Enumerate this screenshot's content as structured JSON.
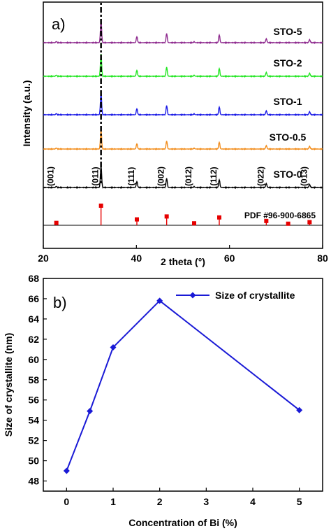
{
  "chart_data": [
    {
      "type": "line",
      "panel": "a)",
      "xlabel": "2 theta (°)",
      "ylabel": "Intensity (a.u.)",
      "xlim": [
        20,
        80
      ],
      "xticks": [
        "20",
        "40",
        "60",
        "80"
      ],
      "peak_positions": [
        22.8,
        32.4,
        40.1,
        46.5,
        52.4,
        57.8,
        67.9,
        77.2
      ],
      "hkl_labels": [
        "(001)",
        "(011)",
        "(111)",
        "(002)",
        "(012)",
        "(112)",
        "(022)",
        "(013)"
      ],
      "series": [
        {
          "name": "STO-5",
          "color": "#8e2a8e",
          "intensities": [
            0.05,
            1.0,
            0.28,
            0.42,
            0.04,
            0.36,
            0.18,
            0.14
          ]
        },
        {
          "name": "STO-2",
          "color": "#22e622",
          "intensities": [
            0.05,
            1.0,
            0.28,
            0.42,
            0.04,
            0.36,
            0.18,
            0.14
          ]
        },
        {
          "name": "STO-1",
          "color": "#1a1ae6",
          "intensities": [
            0.05,
            1.0,
            0.28,
            0.42,
            0.04,
            0.36,
            0.18,
            0.14
          ]
        },
        {
          "name": "STO-0.5",
          "color": "#f28c1a",
          "intensities": [
            0.05,
            1.0,
            0.28,
            0.42,
            0.04,
            0.36,
            0.18,
            0.14
          ]
        },
        {
          "name": "STO-0",
          "color": "#000000",
          "intensities": [
            0.05,
            1.0,
            0.28,
            0.42,
            0.04,
            0.36,
            0.18,
            0.14
          ]
        }
      ],
      "reference": {
        "name": "PDF #96-900-6865",
        "color": "#e60000",
        "positions": [
          22.8,
          32.4,
          40.1,
          46.5,
          52.4,
          57.8,
          67.9,
          72.6,
          77.2
        ],
        "intensities": [
          0.12,
          1.0,
          0.3,
          0.45,
          0.1,
          0.4,
          0.22,
          0.08,
          0.16
        ]
      }
    },
    {
      "type": "line",
      "panel": "b)",
      "xlabel": "Concentration of Bi (%)",
      "ylabel": "Size of crystallite (nm)",
      "xlim": [
        -0.5,
        5.5
      ],
      "ylim": [
        47,
        68
      ],
      "xticks": [
        0,
        1,
        2,
        3,
        4,
        5
      ],
      "yticks": [
        48,
        50,
        52,
        54,
        56,
        58,
        60,
        62,
        64,
        66,
        68
      ],
      "legend_position": "top-right",
      "series": [
        {
          "name": "Size of crystallite",
          "color": "#1a1ad6",
          "x": [
            0,
            0.5,
            1,
            2,
            5
          ],
          "y": [
            49.0,
            54.9,
            61.2,
            65.8,
            55.0
          ]
        }
      ]
    }
  ]
}
